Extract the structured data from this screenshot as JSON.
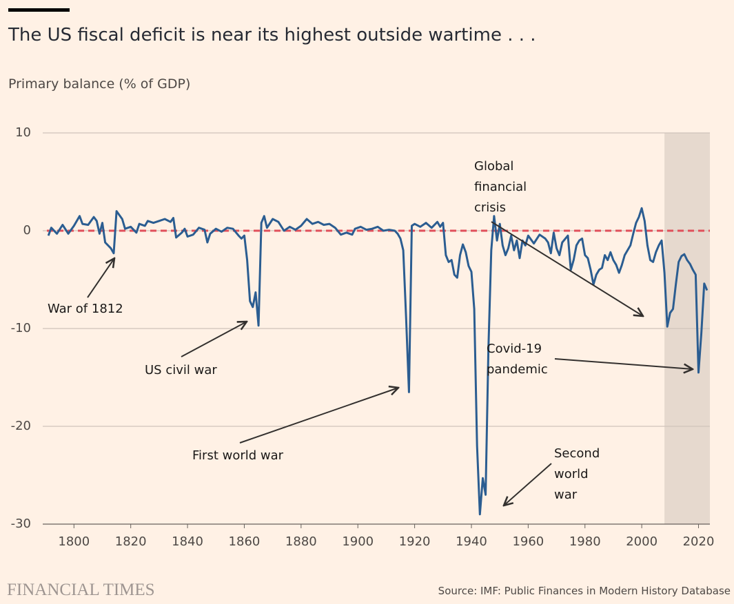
{
  "chart_data": {
    "type": "line",
    "title": "The US fiscal deficit is near its highest outside wartime . . .",
    "subtitle": "Primary balance (% of GDP)",
    "source": "Source: IMF: Public Finances in Modern History Database",
    "brand": "FINANCIAL TIMES",
    "color": "#2b5d91",
    "xlim": [
      1789,
      2024
    ],
    "ylim": [
      -30,
      10
    ],
    "xticks": [
      1800,
      1820,
      1840,
      1860,
      1880,
      1900,
      1920,
      1940,
      1960,
      1980,
      2000,
      2020
    ],
    "yticks": [
      -30,
      -20,
      -10,
      0,
      10
    ],
    "grid": true,
    "reference_line": {
      "value": 0,
      "color": "#e0505a"
    },
    "shaded_region": [
      2008,
      2024
    ],
    "annotations": [
      {
        "text": "War of 1812"
      },
      {
        "text": "US civil war"
      },
      {
        "text": "First world war"
      },
      {
        "text": "Global financial crisis"
      },
      {
        "text": "Covid-19 pandemic"
      },
      {
        "text": "Second world war"
      }
    ],
    "x": [
      1791,
      1792,
      1794,
      1796,
      1798,
      1800,
      1802,
      1803,
      1805,
      1807,
      1808,
      1809,
      1810,
      1811,
      1813,
      1814,
      1815,
      1817,
      1818,
      1820,
      1822,
      1823,
      1825,
      1826,
      1828,
      1830,
      1832,
      1834,
      1835,
      1836,
      1838,
      1839,
      1840,
      1842,
      1844,
      1846,
      1847,
      1848,
      1850,
      1852,
      1854,
      1856,
      1858,
      1859,
      1860,
      1861,
      1862,
      1863,
      1864,
      1865,
      1866,
      1867,
      1868,
      1870,
      1872,
      1874,
      1876,
      1878,
      1880,
      1882,
      1884,
      1886,
      1888,
      1890,
      1892,
      1894,
      1896,
      1898,
      1899,
      1901,
      1903,
      1905,
      1907,
      1909,
      1911,
      1913,
      1914,
      1915,
      1916,
      1917,
      1918,
      1919,
      1920,
      1922,
      1924,
      1926,
      1928,
      1929,
      1930,
      1931,
      1932,
      1933,
      1934,
      1935,
      1936,
      1937,
      1938,
      1939,
      1940,
      1941,
      1942,
      1943,
      1944,
      1945,
      1946,
      1947,
      1948,
      1949,
      1950,
      1951,
      1952,
      1953,
      1954,
      1955,
      1956,
      1957,
      1958,
      1959,
      1960,
      1962,
      1964,
      1966,
      1967,
      1968,
      1969,
      1970,
      1971,
      1972,
      1974,
      1975,
      1976,
      1977,
      1978,
      1979,
      1980,
      1981,
      1982,
      1983,
      1984,
      1985,
      1986,
      1987,
      1988,
      1989,
      1990,
      1991,
      1992,
      1993,
      1994,
      1996,
      1997,
      1998,
      1999,
      2000,
      2001,
      2002,
      2003,
      2004,
      2005,
      2006,
      2007,
      2008,
      2009,
      2010,
      2011,
      2012,
      2013,
      2014,
      2015,
      2016,
      2017,
      2018,
      2019,
      2020,
      2021,
      2022,
      2023
    ],
    "values": [
      -0.5,
      0.3,
      -0.3,
      0.6,
      -0.3,
      0.5,
      1.5,
      0.7,
      0.6,
      1.4,
      1.0,
      -0.3,
      0.8,
      -1.2,
      -1.8,
      -2.3,
      2.0,
      1.2,
      0.2,
      0.4,
      -0.2,
      0.7,
      0.5,
      1.0,
      0.8,
      1.0,
      1.2,
      0.9,
      1.3,
      -0.7,
      -0.2,
      0.2,
      -0.6,
      -0.4,
      0.3,
      0.1,
      -1.2,
      -0.3,
      0.2,
      -0.1,
      0.3,
      0.2,
      -0.5,
      -0.8,
      -0.5,
      -3.0,
      -7.2,
      -7.8,
      -6.3,
      -9.7,
      0.8,
      1.5,
      0.3,
      1.2,
      0.9,
      0.0,
      0.4,
      0.1,
      0.5,
      1.2,
      0.7,
      0.9,
      0.6,
      0.7,
      0.3,
      -0.4,
      -0.2,
      -0.4,
      0.2,
      0.4,
      0.1,
      0.2,
      0.4,
      0,
      0.1,
      0,
      -0.3,
      -0.8,
      -2.0,
      -9.0,
      -16.5,
      0.5,
      0.7,
      0.4,
      0.8,
      0.3,
      0.9,
      0.4,
      0.8,
      -2.5,
      -3.2,
      -3.0,
      -4.5,
      -4.8,
      -2.5,
      -1.4,
      -2.2,
      -3.6,
      -4.2,
      -8,
      -22,
      -29,
      -25.3,
      -27,
      -12,
      -2,
      1.5,
      -1,
      0.7,
      -1.5,
      -2.5,
      -1.8,
      -0.5,
      -2,
      -1.0,
      -2.8,
      -1.0,
      -1.5,
      -0.5,
      -1.3,
      -0.4,
      -0.8,
      -1.2,
      -2.3,
      -0.2,
      -1.8,
      -2.5,
      -1.2,
      -0.5,
      -4.0,
      -3.0,
      -1.5,
      -1.0,
      -0.8,
      -2.5,
      -2.8,
      -4.0,
      -5.5,
      -4.5,
      -4.0,
      -3.8,
      -2.5,
      -3.0,
      -2.2,
      -3.0,
      -3.5,
      -4.3,
      -3.5,
      -2.5,
      -1.5,
      -0.3,
      0.8,
      1.4,
      2.3,
      1.0,
      -1.5,
      -3.0,
      -3.2,
      -2.2,
      -1.5,
      -1.0,
      -4.3,
      -9.8,
      -8.4,
      -8.0,
      -5.5,
      -3.2,
      -2.6,
      -2.4,
      -3.0,
      -3.4,
      -4.0,
      -4.5,
      -14.5,
      -10.5,
      -5.4,
      -6.1
    ]
  }
}
